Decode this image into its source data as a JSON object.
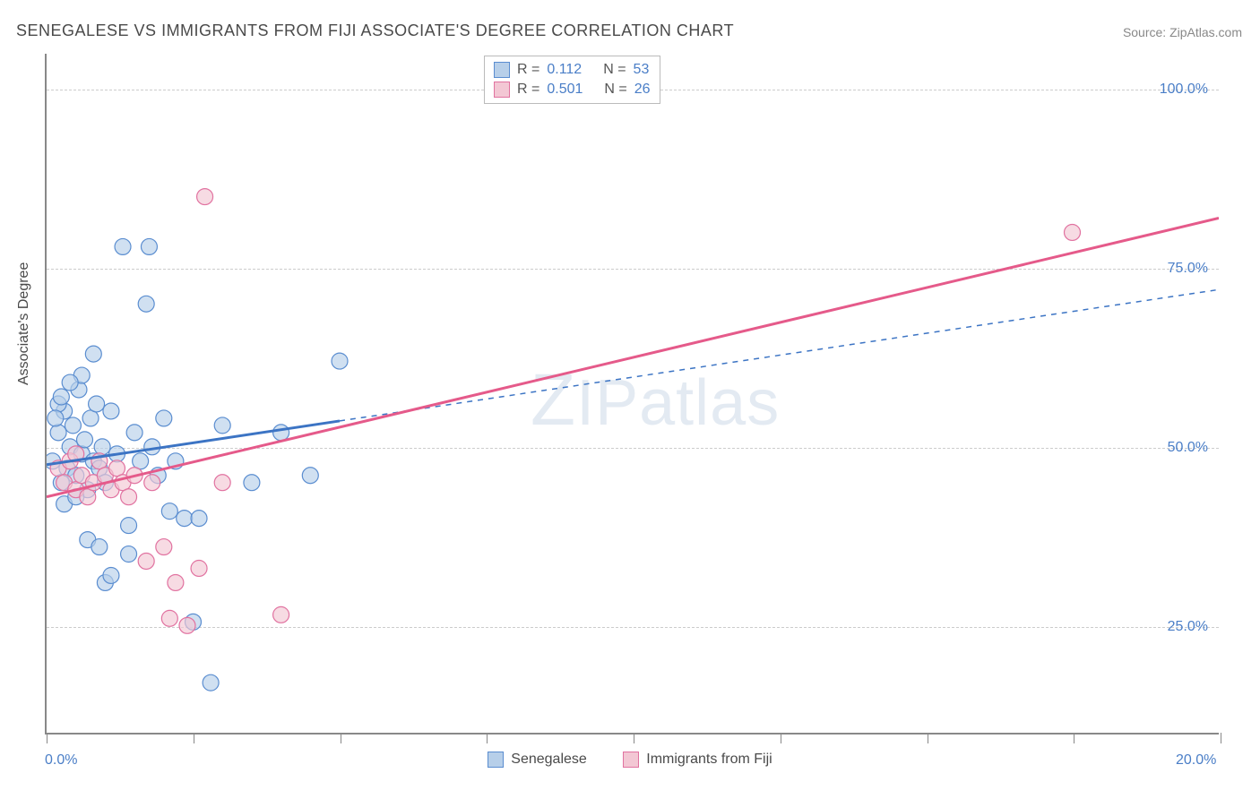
{
  "title": "SENEGALESE VS IMMIGRANTS FROM FIJI ASSOCIATE'S DEGREE CORRELATION CHART",
  "source": "Source: ZipAtlas.com",
  "ylabel": "Associate's Degree",
  "watermark": "ZIPatlas",
  "chart": {
    "type": "scatter",
    "xlim": [
      0,
      20
    ],
    "ylim": [
      10,
      105
    ],
    "x_ticks": [
      0,
      2.5,
      5,
      7.5,
      10,
      12.5,
      15,
      17.5,
      20
    ],
    "x_tick_labels_shown": {
      "0": "0.0%",
      "20": "20.0%"
    },
    "y_ticks": [
      25,
      50,
      75,
      100
    ],
    "y_tick_labels": {
      "25": "25.0%",
      "50": "50.0%",
      "75": "75.0%",
      "100": "100.0%"
    },
    "grid_color": "#cccccc",
    "background_color": "#ffffff",
    "axis_color": "#888888",
    "tick_label_color": "#4a7ec7",
    "series": [
      {
        "name": "Senegalese",
        "fill": "#b7cfe9",
        "stroke": "#5a8dd0",
        "line_color": "#3c74c4",
        "line_dash_after_x": 5,
        "r_label": "R =",
        "r_value": "0.112",
        "n_label": "N =",
        "n_value": "53",
        "trend": {
          "x1": 0,
          "y1": 47.5,
          "x2": 20,
          "y2": 72
        },
        "points": [
          [
            0.1,
            48
          ],
          [
            0.2,
            52
          ],
          [
            0.25,
            45
          ],
          [
            0.3,
            55
          ],
          [
            0.35,
            47
          ],
          [
            0.4,
            50
          ],
          [
            0.45,
            53
          ],
          [
            0.5,
            46
          ],
          [
            0.55,
            58
          ],
          [
            0.6,
            49
          ],
          [
            0.65,
            51
          ],
          [
            0.7,
            44
          ],
          [
            0.75,
            54
          ],
          [
            0.8,
            48
          ],
          [
            0.85,
            56
          ],
          [
            0.9,
            47
          ],
          [
            0.95,
            50
          ],
          [
            1.0,
            45
          ],
          [
            1.1,
            55
          ],
          [
            1.2,
            49
          ],
          [
            1.3,
            78
          ],
          [
            1.4,
            39
          ],
          [
            1.5,
            52
          ],
          [
            1.6,
            48
          ],
          [
            1.7,
            70
          ],
          [
            1.75,
            78
          ],
          [
            1.8,
            50
          ],
          [
            1.9,
            46
          ],
          [
            2.0,
            54
          ],
          [
            2.1,
            41
          ],
          [
            2.2,
            48
          ],
          [
            2.35,
            40
          ],
          [
            2.5,
            25.5
          ],
          [
            2.6,
            40
          ],
          [
            2.8,
            17
          ],
          [
            3.0,
            53
          ],
          [
            3.5,
            45
          ],
          [
            4.0,
            52
          ],
          [
            4.5,
            46
          ],
          [
            5.0,
            62
          ],
          [
            0.3,
            42
          ],
          [
            0.5,
            43
          ],
          [
            0.7,
            37
          ],
          [
            0.9,
            36
          ],
          [
            1.0,
            31
          ],
          [
            1.1,
            32
          ],
          [
            1.4,
            35
          ],
          [
            0.6,
            60
          ],
          [
            0.8,
            63
          ],
          [
            0.2,
            56
          ],
          [
            0.4,
            59
          ],
          [
            0.15,
            54
          ],
          [
            0.25,
            57
          ]
        ]
      },
      {
        "name": "Immigrants from Fiji",
        "fill": "#f3c7d4",
        "stroke": "#e172a0",
        "line_color": "#e55a8a",
        "r_label": "R =",
        "r_value": "0.501",
        "n_label": "N =",
        "n_value": "26",
        "trend": {
          "x1": 0,
          "y1": 43,
          "x2": 20,
          "y2": 82
        },
        "points": [
          [
            0.2,
            47
          ],
          [
            0.3,
            45
          ],
          [
            0.4,
            48
          ],
          [
            0.5,
            44
          ],
          [
            0.6,
            46
          ],
          [
            0.7,
            43
          ],
          [
            0.8,
            45
          ],
          [
            0.9,
            48
          ],
          [
            1.0,
            46
          ],
          [
            1.1,
            44
          ],
          [
            1.2,
            47
          ],
          [
            1.3,
            45
          ],
          [
            1.4,
            43
          ],
          [
            1.5,
            46
          ],
          [
            1.7,
            34
          ],
          [
            1.8,
            45
          ],
          [
            2.0,
            36
          ],
          [
            2.1,
            26
          ],
          [
            2.2,
            31
          ],
          [
            2.4,
            25
          ],
          [
            2.6,
            33
          ],
          [
            2.7,
            85
          ],
          [
            3.0,
            45
          ],
          [
            4.0,
            26.5
          ],
          [
            17.5,
            80
          ],
          [
            0.5,
            49
          ]
        ]
      }
    ],
    "marker_radius": 9,
    "marker_opacity": 0.65,
    "line_width_solid": 3,
    "line_width_dash": 1.5
  },
  "legend_bottom": [
    {
      "label": "Senegalese",
      "fill": "#b7cfe9",
      "stroke": "#5a8dd0"
    },
    {
      "label": "Immigrants from Fiji",
      "fill": "#f3c7d4",
      "stroke": "#e172a0"
    }
  ]
}
